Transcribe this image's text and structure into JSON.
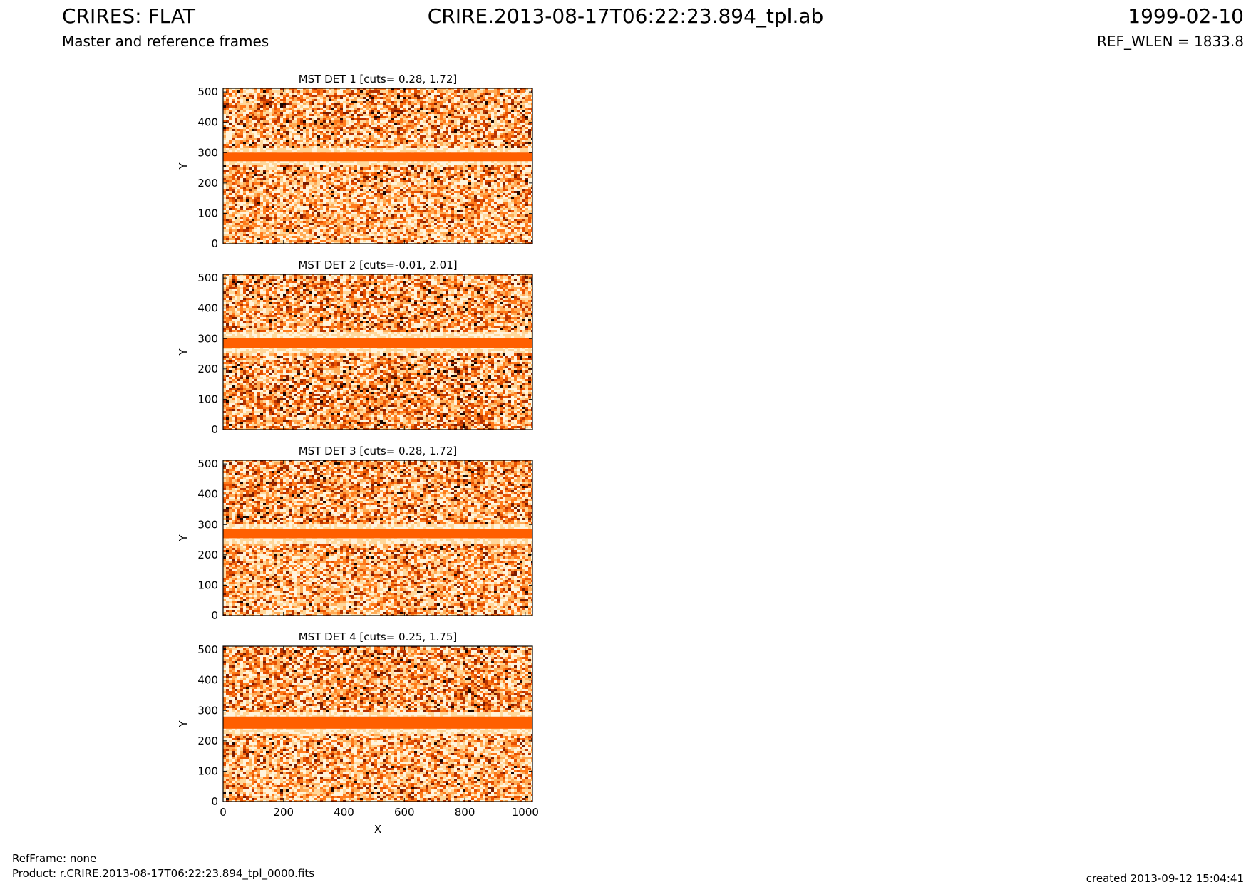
{
  "header": {
    "title": "CRIRES: FLAT",
    "subtitle": "Master and reference frames",
    "filename": "CRIRE.2013-08-17T06:22:23.894_tpl.ab",
    "date": "1999-02-10",
    "ref_wlen": "REF_WLEN = 1833.8"
  },
  "footer": {
    "refframe": "RefFrame: none",
    "product": "Product: r.CRIRE.2013-08-17T06:22:23.894_tpl_0000.fits",
    "created": "created 2013-09-12 15:04:41"
  },
  "colors": {
    "band": "#ff5f00",
    "dark_bg": "#c43d00",
    "light_bg": "#f9b070",
    "axis": "#000000"
  },
  "chart_data": [
    {
      "type": "heatmap",
      "title": "MST DET 1 [cuts= 0.28, 1.72]",
      "xlabel": "",
      "ylabel": "Y",
      "xlim": [
        0,
        1024
      ],
      "ylim": [
        0,
        512
      ],
      "xticks": [],
      "yticks": [
        0,
        100,
        200,
        300,
        400,
        500
      ],
      "band_y": [
        272,
        300
      ],
      "halo_y": [
        262,
        312
      ],
      "colormap": "gist_heat"
    },
    {
      "type": "heatmap",
      "title": "MST DET 2 [cuts=-0.01, 2.01]",
      "xlabel": "",
      "ylabel": "Y",
      "xlim": [
        0,
        1024
      ],
      "ylim": [
        0,
        512
      ],
      "xticks": [],
      "yticks": [
        0,
        100,
        200,
        300,
        400,
        500
      ],
      "band_y": [
        270,
        302
      ],
      "halo_y": [
        258,
        320
      ],
      "colormap": "gist_heat"
    },
    {
      "type": "heatmap",
      "title": "MST DET 3 [cuts= 0.28, 1.72]",
      "xlabel": "",
      "ylabel": "Y",
      "xlim": [
        0,
        1024
      ],
      "ylim": [
        0,
        512
      ],
      "xticks": [],
      "yticks": [
        0,
        100,
        200,
        300,
        400,
        500
      ],
      "band_y": [
        255,
        285
      ],
      "halo_y": [
        243,
        298
      ],
      "colormap": "gist_heat"
    },
    {
      "type": "heatmap",
      "title": "MST DET 4 [cuts= 0.25, 1.75]",
      "xlabel": "X",
      "ylabel": "Y",
      "xlim": [
        0,
        1024
      ],
      "ylim": [
        0,
        512
      ],
      "xticks": [
        0,
        200,
        400,
        600,
        800,
        1000
      ],
      "yticks": [
        0,
        100,
        200,
        300,
        400,
        500
      ],
      "band_y": [
        240,
        280
      ],
      "halo_y": [
        230,
        292
      ],
      "colormap": "gist_heat"
    }
  ]
}
